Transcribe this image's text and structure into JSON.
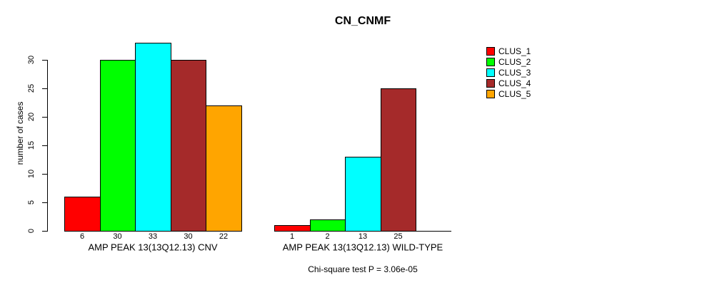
{
  "chart_data": {
    "type": "bar",
    "title": "CN_CNMF",
    "ylabel": "number of cases",
    "xlabel": "",
    "ylim": [
      0,
      33
    ],
    "yticks": [
      0,
      5,
      10,
      15,
      20,
      25,
      30
    ],
    "grid": false,
    "legend_position": "right",
    "series": [
      {
        "name": "CLUS_1",
        "color": "#FF0000"
      },
      {
        "name": "CLUS_2",
        "color": "#00FF00"
      },
      {
        "name": "CLUS_3",
        "color": "#00FFFF"
      },
      {
        "name": "CLUS_4",
        "color": "#A52A2A"
      },
      {
        "name": "CLUS_5",
        "color": "#FFA500"
      }
    ],
    "groups": [
      {
        "label": "AMP PEAK 13(13Q12.13) CNV",
        "values": [
          6,
          30,
          33,
          30,
          22
        ],
        "bar_labels": [
          "6",
          "30",
          "33",
          "30",
          "22"
        ]
      },
      {
        "label": "AMP PEAK 13(13Q12.13) WILD-TYPE",
        "values": [
          1,
          2,
          13,
          25,
          null
        ],
        "bar_labels": [
          "1",
          "2",
          "13",
          "25",
          ""
        ]
      }
    ],
    "annotation": "Chi-square test P = 3.06e-05"
  },
  "colors": {
    "axis": "#000000",
    "background": "#FFFFFF"
  }
}
